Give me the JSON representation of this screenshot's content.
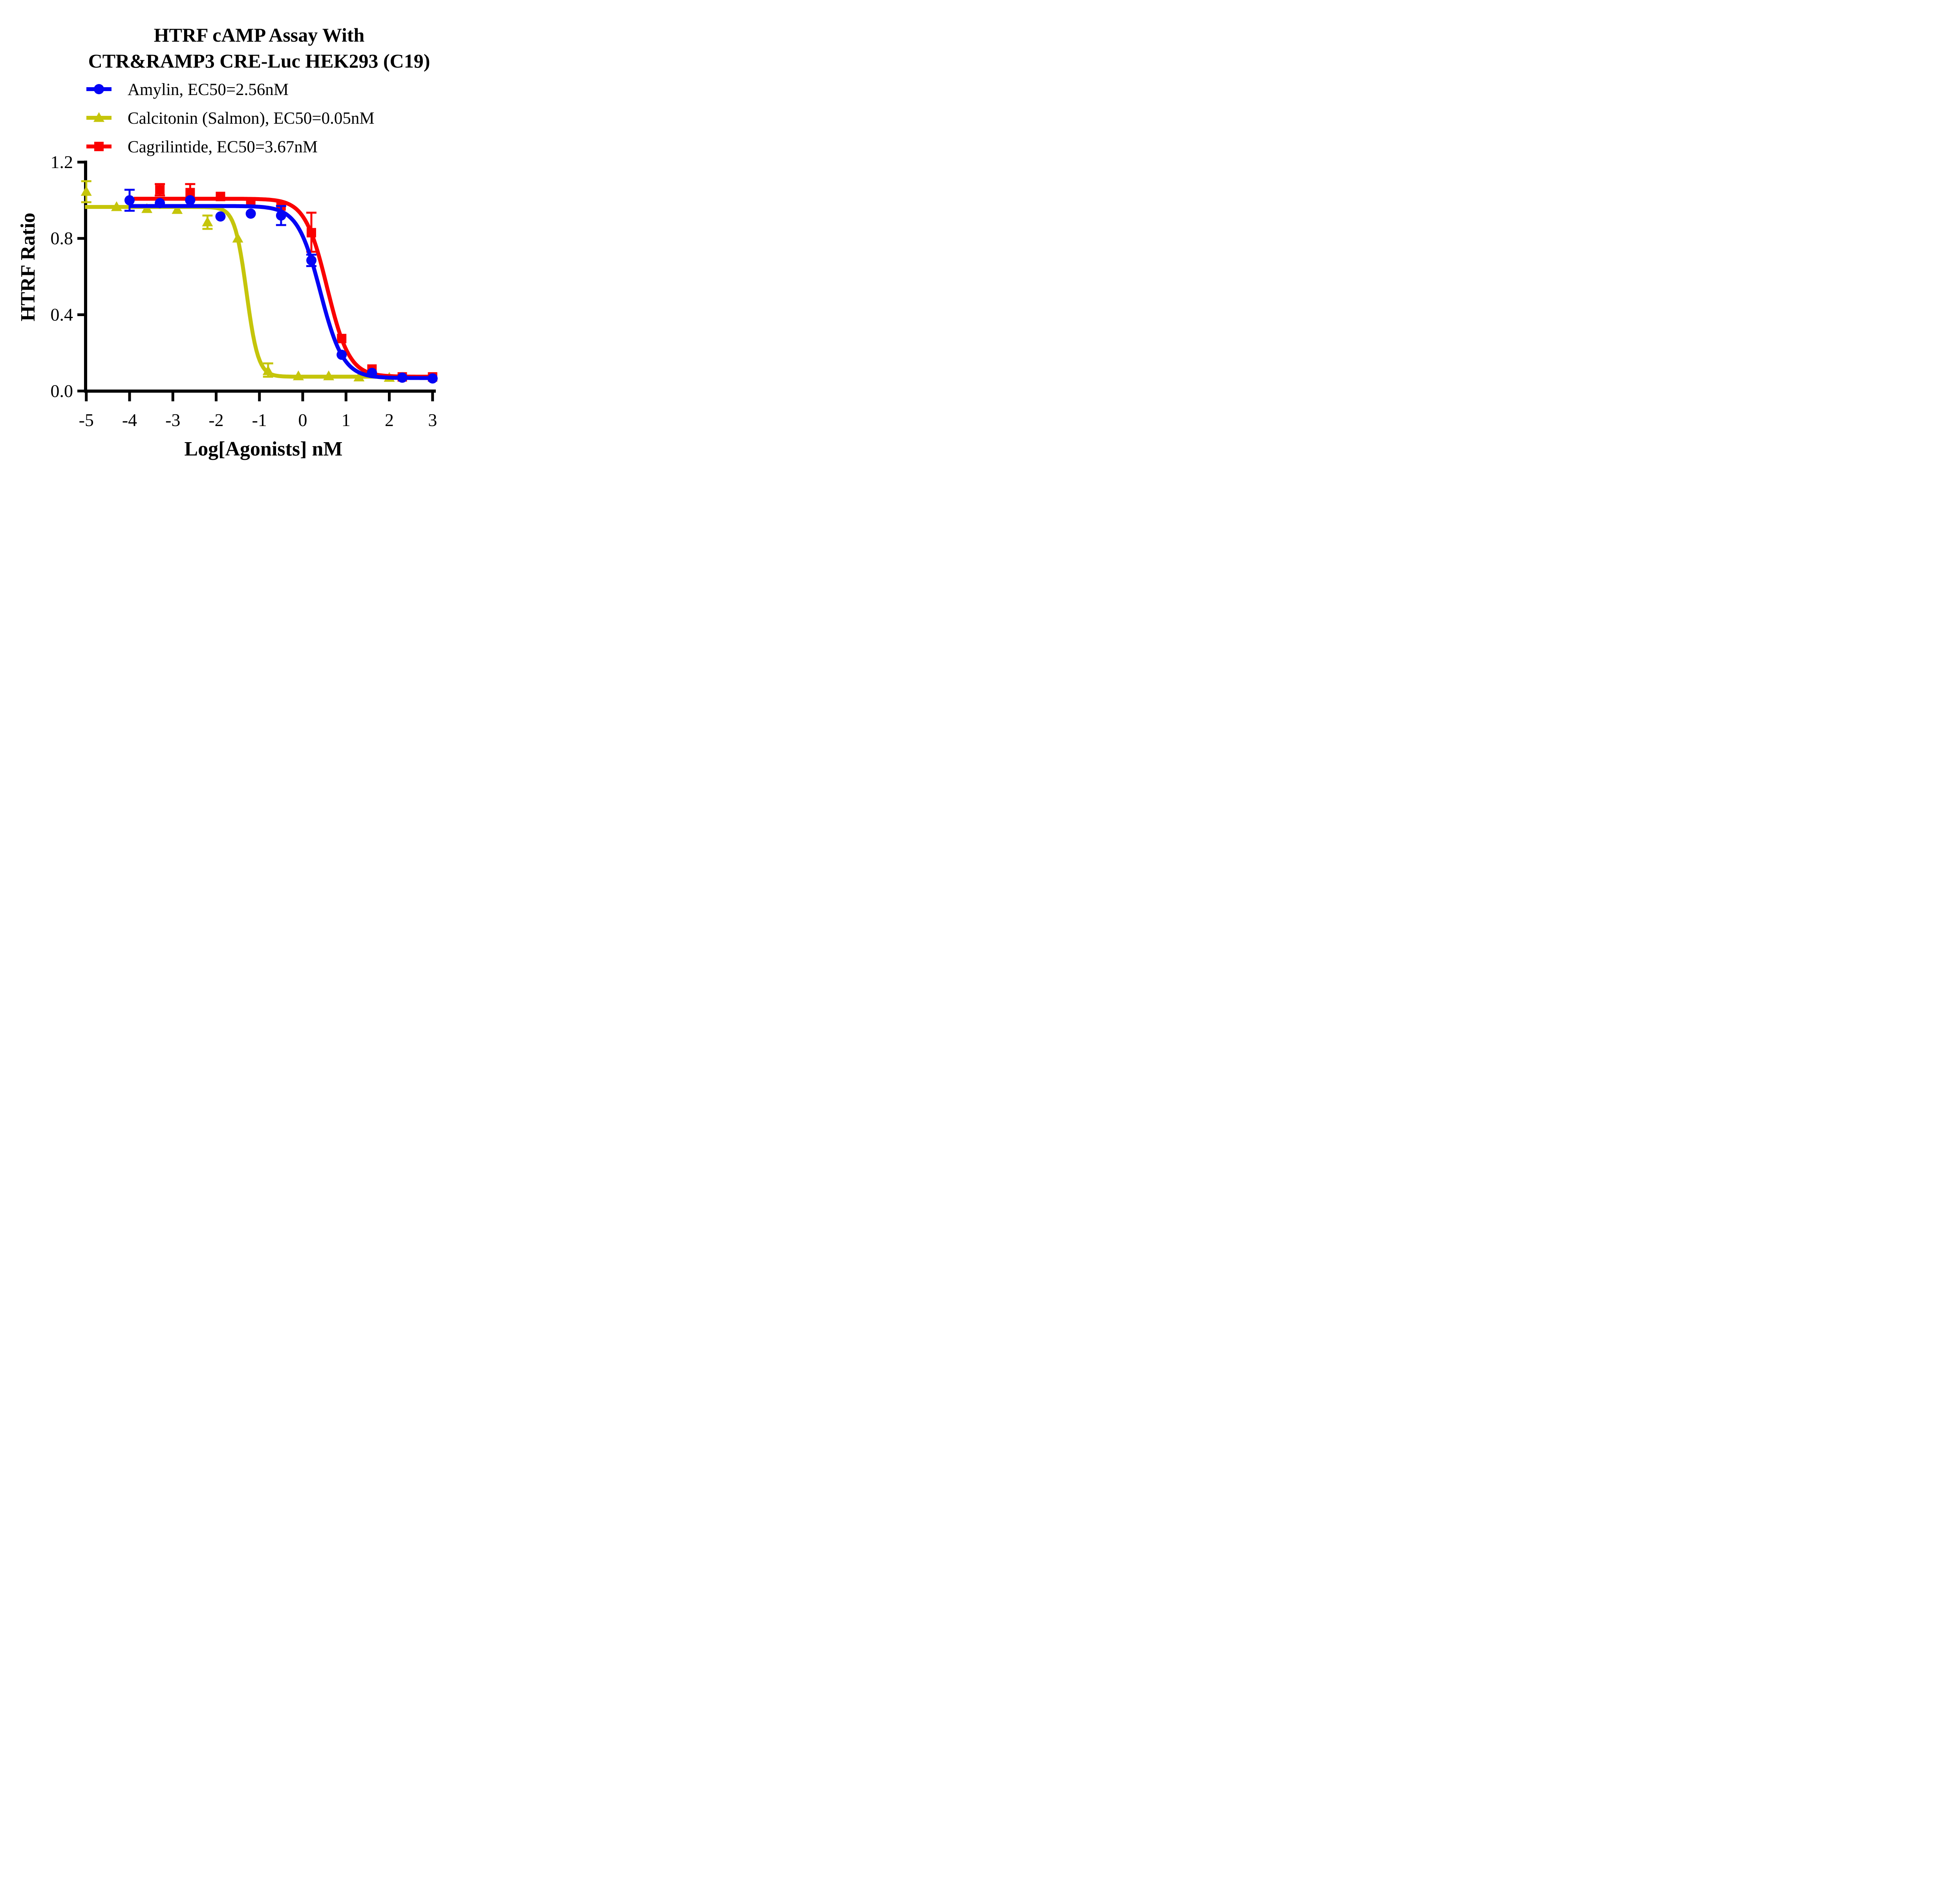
{
  "title": {
    "line1": "HTRF cAMP Assay With",
    "line2": "CTR&RAMP3 CRE-Luc HEK293 (C19)"
  },
  "chart_data": {
    "type": "line",
    "title": "HTRF cAMP Assay With CTR&RAMP3 CRE-Luc HEK293 (C19)",
    "xlabel": "Log[Agonists] nM",
    "ylabel": "HTRF Ratio",
    "xlim": [
      -5.05,
      3.1
    ],
    "ylim": [
      0.0,
      1.2
    ],
    "grid": false,
    "legend_position": "top-left",
    "x_ticks": [
      "-5",
      "-4",
      "-3",
      "-2",
      "-1",
      "0",
      "1",
      "2",
      "3"
    ],
    "x_tick_values": [
      -5,
      -4,
      -3,
      -2,
      -1,
      0,
      1,
      2,
      3
    ],
    "y_ticks": [
      "0.0",
      "0.4",
      "0.8",
      "1.2"
    ],
    "y_tick_values": [
      0.0,
      0.4,
      0.8,
      1.2
    ],
    "series": [
      {
        "name": "Amylin",
        "legend_label": "Amylin,  EC50=2.56nM",
        "ec50_nM": 2.56,
        "color": "#0404F5",
        "marker": "circle",
        "x": [
          -4.0,
          -3.3,
          -2.6,
          -1.9,
          -1.2,
          -0.5,
          0.2,
          0.9,
          1.6,
          2.3,
          3.0
        ],
        "y": [
          1.0,
          0.985,
          1.0,
          0.915,
          0.93,
          0.92,
          0.685,
          0.19,
          0.095,
          0.07,
          0.066
        ],
        "err_up": [
          0.055,
          0,
          0,
          0,
          0,
          0.05,
          0.03,
          0,
          0,
          0,
          0
        ],
        "err_down": [
          0.055,
          0,
          0,
          0,
          0,
          0.05,
          0.03,
          0,
          0,
          0,
          0
        ],
        "fit": {
          "top": 0.97,
          "bottom": 0.068,
          "log_ec50": 0.408,
          "hill": 1.65,
          "x_start": -4.0,
          "x_end": 3.05
        }
      },
      {
        "name": "Calcitonin (Salmon)",
        "legend_label": "Calcitonin (Salmon),  EC50=0.05nM",
        "ec50_nM": 0.05,
        "color": "#C5C50A",
        "marker": "triangle",
        "x": [
          -5.0,
          -4.3,
          -3.6,
          -2.9,
          -2.2,
          -1.5,
          -0.8,
          -0.1,
          0.6,
          1.3,
          2.0
        ],
        "y": [
          1.045,
          0.965,
          0.955,
          0.95,
          0.885,
          0.8,
          0.105,
          0.078,
          0.078,
          0.072,
          0.07
        ],
        "err_up": [
          0.055,
          0,
          0,
          0,
          0.035,
          0,
          0.04,
          0,
          0,
          0,
          0
        ],
        "err_down": [
          0.055,
          0,
          0,
          0,
          0.035,
          0,
          0.03,
          0,
          0,
          0,
          0
        ],
        "fit": {
          "top": 0.965,
          "bottom": 0.075,
          "log_ec50": -1.3,
          "hill": 3.2,
          "x_start": -5.03,
          "x_end": 2.05
        }
      },
      {
        "name": "Cagrilintide",
        "legend_label": "Cagrilintide,  EC50=3.67nM",
        "ec50_nM": 3.67,
        "color": "#FA0000",
        "marker": "square",
        "x": [
          -3.3,
          -2.6,
          -1.9,
          -1.2,
          -0.5,
          0.2,
          0.9,
          1.6,
          2.3,
          3.0
        ],
        "y": [
          1.055,
          1.04,
          1.02,
          0.992,
          0.97,
          0.83,
          0.275,
          0.115,
          0.074,
          0.074
        ],
        "err_up": [
          0.03,
          0.045,
          0,
          0,
          0,
          0.105,
          0,
          0,
          0,
          0
        ],
        "err_down": [
          0.03,
          0.04,
          0,
          0,
          0,
          0.1,
          0,
          0,
          0,
          0
        ],
        "fit": {
          "top": 1.008,
          "bottom": 0.075,
          "log_ec50": 0.565,
          "hill": 1.7,
          "x_start": -3.9,
          "x_end": 3.05
        }
      }
    ]
  }
}
